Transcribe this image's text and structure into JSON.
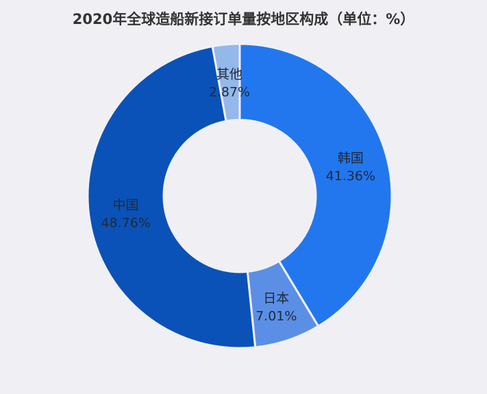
{
  "chart_data": {
    "type": "pie",
    "variant": "donut",
    "title": "2020年全球造船新接订单量按地区构成（单位：%）",
    "slices": [
      {
        "label": "韩国",
        "value": 41.36,
        "value_label": "41.36%",
        "color": "#2277ee"
      },
      {
        "label": "日本",
        "value": 7.01,
        "value_label": "7.01%",
        "color": "#5b8fe6"
      },
      {
        "label": "中国",
        "value": 48.76,
        "value_label": "48.76%",
        "color": "#0a52b8"
      },
      {
        "label": "其他",
        "value": 2.87,
        "value_label": "2.87%",
        "color": "#94b8ea"
      }
    ],
    "start": "top",
    "direction": "clockwise"
  }
}
